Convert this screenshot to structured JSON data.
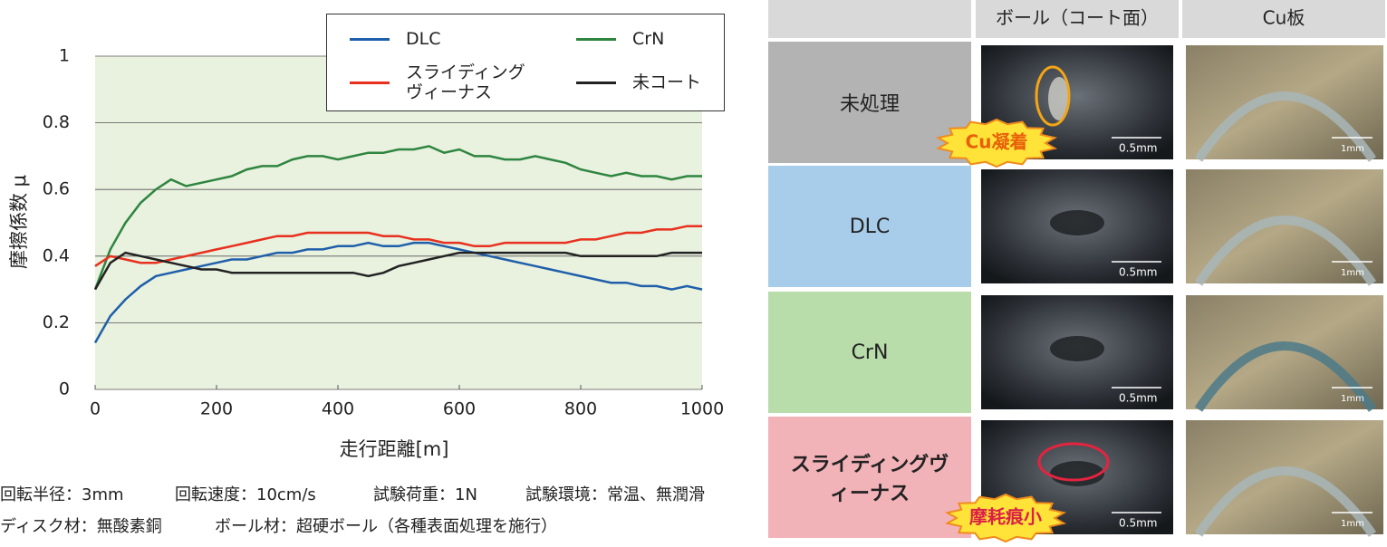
{
  "chart_data": {
    "type": "line",
    "ylabel": "摩擦係数 μ",
    "xlabel": "走行距離[m]",
    "x": [
      0,
      25,
      50,
      75,
      100,
      125,
      150,
      175,
      200,
      225,
      250,
      275,
      300,
      325,
      350,
      375,
      400,
      425,
      450,
      475,
      500,
      525,
      550,
      575,
      600,
      625,
      650,
      675,
      700,
      725,
      750,
      775,
      800,
      825,
      850,
      875,
      900,
      925,
      950,
      975,
      1000
    ],
    "xlim": [
      0,
      1000
    ],
    "xticks": [
      0,
      200,
      400,
      600,
      800,
      1000
    ],
    "ylim": [
      0,
      1
    ],
    "yticks": [
      0,
      0.2,
      0.4,
      0.6,
      0.8,
      1
    ],
    "grid": true,
    "legend": "top-right",
    "series": [
      {
        "name": "DLC",
        "color": "#1f5faa",
        "values": [
          0.14,
          0.22,
          0.27,
          0.31,
          0.34,
          0.35,
          0.36,
          0.37,
          0.38,
          0.39,
          0.39,
          0.4,
          0.41,
          0.41,
          0.42,
          0.42,
          0.43,
          0.43,
          0.44,
          0.43,
          0.43,
          0.44,
          0.44,
          0.43,
          0.42,
          0.41,
          0.4,
          0.39,
          0.38,
          0.37,
          0.36,
          0.35,
          0.34,
          0.33,
          0.32,
          0.32,
          0.31,
          0.31,
          0.3,
          0.31,
          0.3
        ]
      },
      {
        "name": "CrN",
        "color": "#2e8540",
        "values": [
          0.3,
          0.42,
          0.5,
          0.56,
          0.6,
          0.63,
          0.61,
          0.62,
          0.63,
          0.64,
          0.66,
          0.67,
          0.67,
          0.69,
          0.7,
          0.7,
          0.69,
          0.7,
          0.71,
          0.71,
          0.72,
          0.72,
          0.73,
          0.71,
          0.72,
          0.7,
          0.7,
          0.69,
          0.69,
          0.7,
          0.69,
          0.68,
          0.66,
          0.65,
          0.64,
          0.65,
          0.64,
          0.64,
          0.63,
          0.64,
          0.64
        ]
      },
      {
        "name": "スライディングヴィーナス",
        "color": "#e8301e",
        "values": [
          0.37,
          0.4,
          0.39,
          0.38,
          0.38,
          0.39,
          0.4,
          0.41,
          0.42,
          0.43,
          0.44,
          0.45,
          0.46,
          0.46,
          0.47,
          0.47,
          0.47,
          0.47,
          0.47,
          0.46,
          0.46,
          0.45,
          0.45,
          0.44,
          0.44,
          0.43,
          0.43,
          0.44,
          0.44,
          0.44,
          0.44,
          0.44,
          0.45,
          0.45,
          0.46,
          0.47,
          0.47,
          0.48,
          0.48,
          0.49,
          0.49
        ]
      },
      {
        "name": "未コート",
        "color": "#222222",
        "values": [
          0.3,
          0.38,
          0.41,
          0.4,
          0.39,
          0.38,
          0.37,
          0.36,
          0.36,
          0.35,
          0.35,
          0.35,
          0.35,
          0.35,
          0.35,
          0.35,
          0.35,
          0.35,
          0.34,
          0.35,
          0.37,
          0.38,
          0.39,
          0.4,
          0.41,
          0.41,
          0.41,
          0.41,
          0.41,
          0.41,
          0.41,
          0.41,
          0.4,
          0.4,
          0.4,
          0.4,
          0.4,
          0.4,
          0.41,
          0.41,
          0.41
        ]
      }
    ]
  },
  "notes": [
    [
      "回転半径：3mm",
      "回転速度：10cm/s",
      "試験荷重：1N",
      "試験環境：常温、無潤滑"
    ],
    [
      "ディスク材：無酸素銅",
      "ボール材：超硬ボール（各種表面処理を施行）"
    ]
  ],
  "table": {
    "headers": [
      "ボール（コート面）",
      "Cu板"
    ],
    "ball_scale": "0.5mm",
    "cu_scale": "1mm",
    "rows": [
      {
        "label": "未処理",
        "color": "#b3b3b3",
        "badge": "Cu凝着"
      },
      {
        "label": "DLC",
        "color": "#a8cdea"
      },
      {
        "label": "CrN",
        "color": "#b8dcaa"
      },
      {
        "label": "スライディングヴィーナス",
        "color": "#f2b3b8",
        "badge": "摩耗痕小"
      }
    ]
  }
}
